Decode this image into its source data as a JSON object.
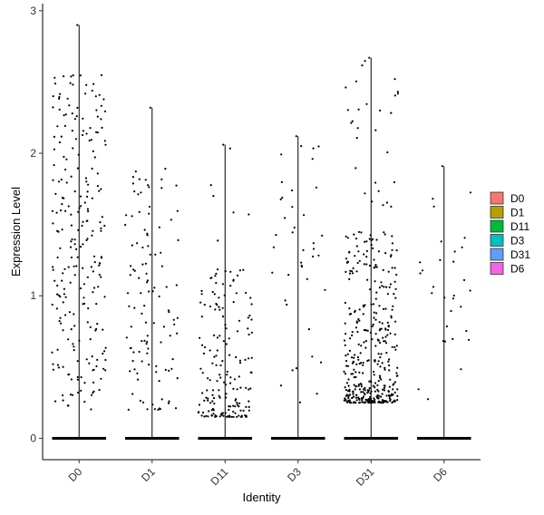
{
  "chart_data": {
    "type": "scatter",
    "subtype": "violin-jitter",
    "title": "",
    "xlabel": "Identity",
    "ylabel": "Expression Level",
    "ylim": [
      -0.15,
      3.05
    ],
    "yticks": [
      0,
      1,
      2,
      3
    ],
    "categories": [
      "D0",
      "D1",
      "D11",
      "D3",
      "D31",
      "D6"
    ],
    "grid": false,
    "legend_position": "right",
    "legend": [
      {
        "name": "D0",
        "color": "#F8766D"
      },
      {
        "name": "D1",
        "color": "#B79F00"
      },
      {
        "name": "D11",
        "color": "#00BA38"
      },
      {
        "name": "D3",
        "color": "#00BFC4"
      },
      {
        "name": "D31",
        "color": "#619CFF"
      },
      {
        "name": "D6",
        "color": "#F564E3"
      }
    ],
    "groups": [
      {
        "name": "D0",
        "max": 2.9,
        "n_nonzero": 240,
        "dist": "uniform",
        "min": 0.2,
        "span": 2.35
      },
      {
        "name": "D1",
        "max": 2.32,
        "n_nonzero": 110,
        "dist": "skew",
        "min": 0.2,
        "span": 1.7
      },
      {
        "name": "D11",
        "max": 2.06,
        "n_nonzero": 180,
        "dist": "low",
        "min": 0.15,
        "span": 1.05
      },
      {
        "name": "D3",
        "max": 2.12,
        "n_nonzero": 40,
        "dist": "uniform",
        "min": 0.17,
        "span": 1.9
      },
      {
        "name": "D31",
        "max": 2.67,
        "n_nonzero": 420,
        "dist": "low",
        "min": 0.25,
        "span": 1.2
      },
      {
        "name": "D6",
        "max": 1.91,
        "n_nonzero": 30,
        "dist": "uniform",
        "min": 0.25,
        "span": 1.5
      }
    ]
  }
}
